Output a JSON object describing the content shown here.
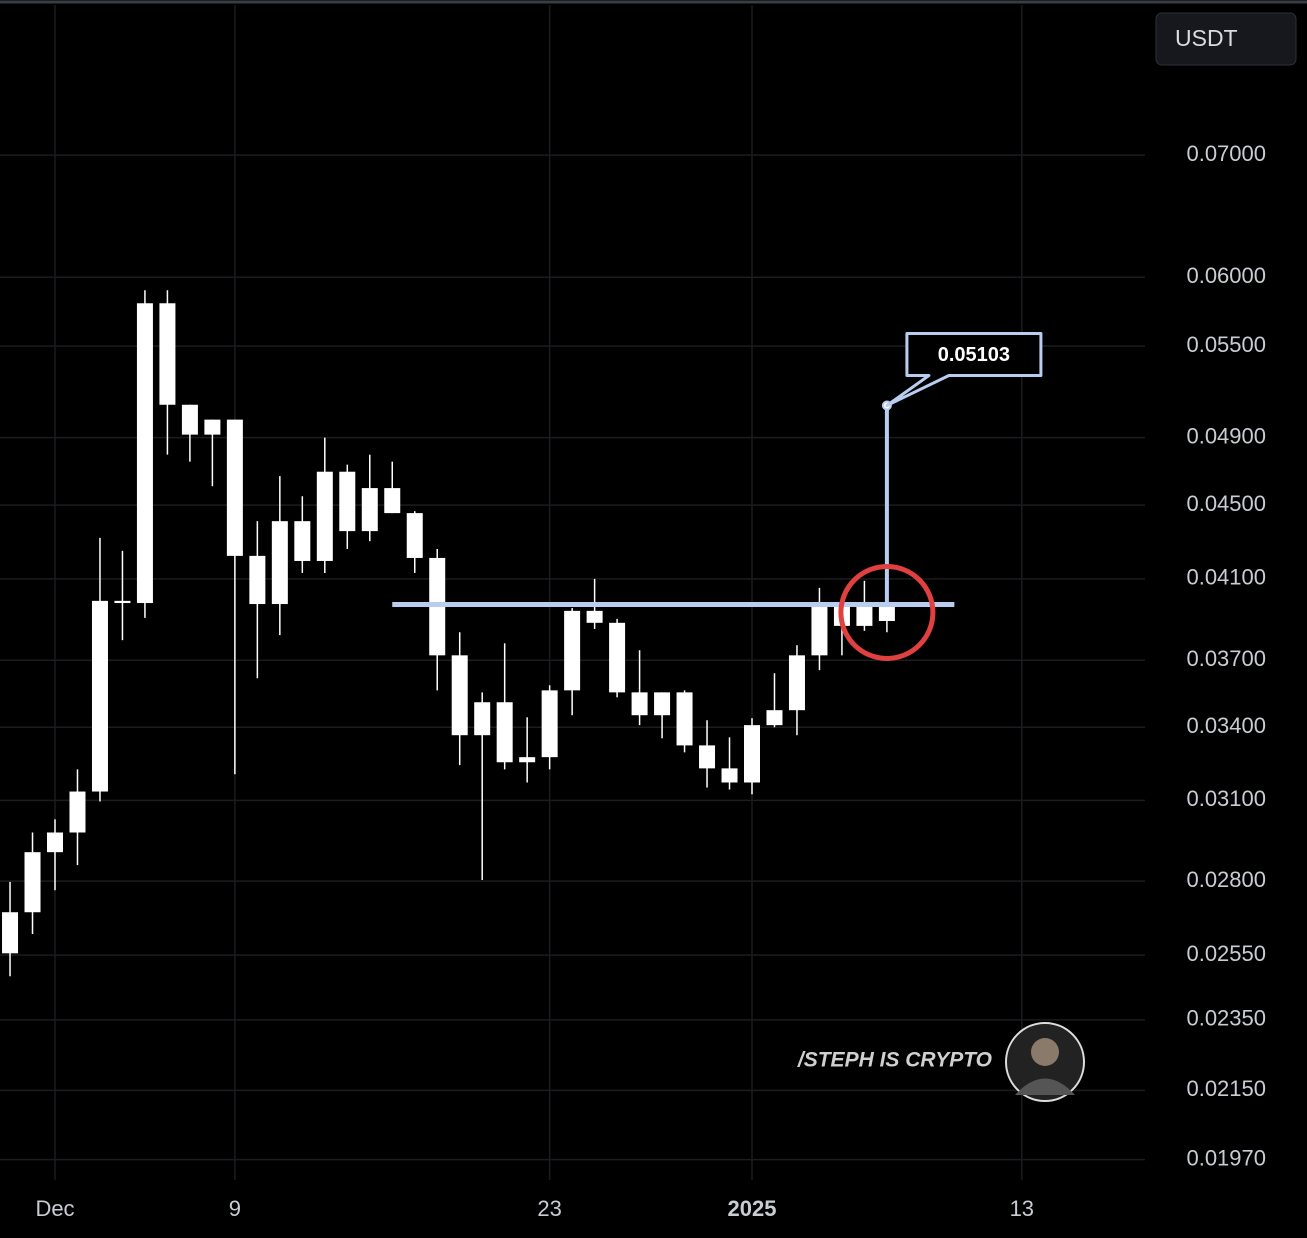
{
  "chart_data": {
    "type": "candlestick",
    "currency": "USDT",
    "watermark": "/STEPH IS CRYPTO",
    "color": "#ffffff",
    "log_scale": true,
    "grid": true,
    "x": [
      "2024-11-29",
      "2024-11-30",
      "2024-12-01",
      "2024-12-02",
      "2024-12-03",
      "2024-12-04",
      "2024-12-05",
      "2024-12-06",
      "2024-12-07",
      "2024-12-08",
      "2024-12-09",
      "2024-12-10",
      "2024-12-11",
      "2024-12-12",
      "2024-12-13",
      "2024-12-14",
      "2024-12-15",
      "2024-12-16",
      "2024-12-17",
      "2024-12-18",
      "2024-12-19",
      "2024-12-20",
      "2024-12-21",
      "2024-12-22",
      "2024-12-23",
      "2024-12-24",
      "2024-12-25",
      "2024-12-26",
      "2024-12-27",
      "2024-12-28",
      "2024-12-29",
      "2024-12-30",
      "2024-12-31",
      "2025-01-01",
      "2025-01-02",
      "2025-01-03",
      "2025-01-04",
      "2025-01-05",
      "2025-01-06",
      "2025-01-07"
    ],
    "open": [
      0.02556,
      0.02692,
      0.02904,
      0.02977,
      0.03135,
      0.03988,
      0.03977,
      0.05806,
      0.05108,
      0.04919,
      0.05013,
      0.04221,
      0.03972,
      0.0441,
      0.04194,
      0.04694,
      0.04355,
      0.04598,
      0.04455,
      0.0421,
      0.03723,
      0.03366,
      0.03509,
      0.03253,
      0.03274,
      0.03562,
      0.03938,
      0.03879,
      0.03553,
      0.03452,
      0.03553,
      0.03323,
      0.03228,
      0.03171,
      0.03409,
      0.03474,
      0.03723,
      0.03963,
      0.03864,
      0.03963
    ],
    "high": [
      0.02797,
      0.02977,
      0.03027,
      0.03224,
      0.04318,
      0.04248,
      0.05902,
      0.05902,
      0.05108,
      0.05013,
      0.05013,
      0.0441,
      0.04668,
      0.04551,
      0.049,
      0.04736,
      0.04796,
      0.04754,
      0.04466,
      0.04258,
      0.03833,
      0.03553,
      0.0378,
      0.03443,
      0.03585,
      0.03952,
      0.041,
      0.03898,
      0.03747,
      0.03553,
      0.03562,
      0.0343,
      0.03357,
      0.03439,
      0.0364,
      0.03771,
      0.04054,
      0.03988,
      0.0409,
      0.03988
    ],
    "low": [
      0.02483,
      0.02619,
      0.02768,
      0.02857,
      0.03096,
      0.03795,
      0.03903,
      0.04796,
      0.04754,
      0.04609,
      0.03204,
      0.03617,
      0.03819,
      0.04131,
      0.04131,
      0.04258,
      0.043,
      0.04455,
      0.04131,
      0.03562,
      0.03241,
      0.02804,
      0.03224,
      0.03171,
      0.03224,
      0.03452,
      0.03849,
      0.03531,
      0.03409,
      0.03353,
      0.03294,
      0.03151,
      0.03143,
      0.03124,
      0.034,
      0.03366,
      0.03654,
      0.03723,
      0.0384,
      0.03833
    ],
    "close": [
      0.02692,
      0.02904,
      0.02977,
      0.03135,
      0.03988,
      0.03977,
      0.05806,
      0.05108,
      0.04919,
      0.05013,
      0.04221,
      0.03972,
      0.0441,
      0.04194,
      0.04694,
      0.04355,
      0.04598,
      0.04455,
      0.0421,
      0.03723,
      0.03366,
      0.03509,
      0.03253,
      0.03274,
      0.03562,
      0.03938,
      0.03879,
      0.03553,
      0.03452,
      0.03553,
      0.03323,
      0.03228,
      0.03171,
      0.03409,
      0.03474,
      0.03723,
      0.03963,
      0.03864,
      0.03963,
      0.03888
    ],
    "ylim": [
      0.0192,
      0.0846
    ],
    "yticks": [
      {
        "value": 0.07,
        "label": "0.07000"
      },
      {
        "value": 0.06,
        "label": "0.06000"
      },
      {
        "value": 0.055,
        "label": "0.05500"
      },
      {
        "value": 0.049,
        "label": "0.04900"
      },
      {
        "value": 0.045,
        "label": "0.04500"
      },
      {
        "value": 0.041,
        "label": "0.04100"
      },
      {
        "value": 0.037,
        "label": "0.03700"
      },
      {
        "value": 0.034,
        "label": "0.03400"
      },
      {
        "value": 0.031,
        "label": "0.03100"
      },
      {
        "value": 0.028,
        "label": "0.02800"
      },
      {
        "value": 0.0255,
        "label": "0.02550"
      },
      {
        "value": 0.0235,
        "label": "0.02350"
      },
      {
        "value": 0.0215,
        "label": "0.02150"
      },
      {
        "value": 0.0197,
        "label": "0.01970"
      }
    ],
    "xticks": [
      {
        "value": "2024-12-01",
        "label": "Dec"
      },
      {
        "value": "2024-12-09",
        "label": "9"
      },
      {
        "value": "2024-12-23",
        "label": "23"
      },
      {
        "value": "2025-01-01",
        "label": "2025"
      },
      {
        "value": "2025-01-13",
        "label": "13"
      }
    ],
    "resistance_line": {
      "value": 0.0397,
      "x": [
        "2024-12-16",
        "2025-01-10"
      ],
      "color": "#b8cdf0"
    },
    "target": {
      "value": 0.05103,
      "label": "0.05103",
      "x": "2025-01-07",
      "color": "#b8cdf0"
    },
    "highlight_circle": {
      "x": "2025-01-07",
      "value": 0.0393,
      "color": "#e0403f"
    }
  }
}
